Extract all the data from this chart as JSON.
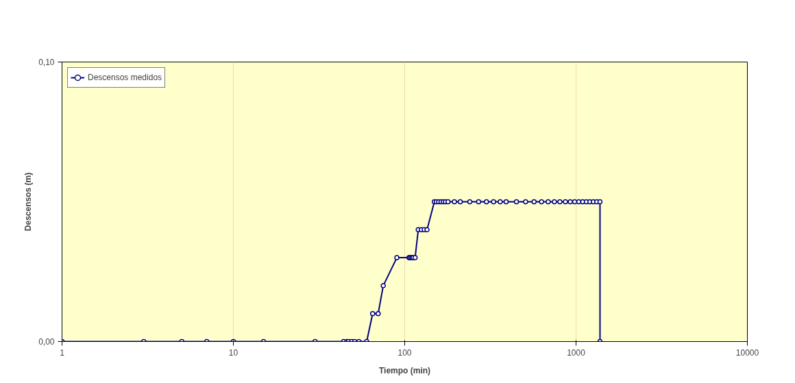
{
  "chart_data": {
    "type": "line",
    "xlabel": "Tiempo (min)",
    "ylabel": "Descensos (m)",
    "x": [
      1,
      3,
      5,
      7,
      10,
      15,
      30,
      44,
      46,
      47,
      49,
      51,
      54,
      60,
      65,
      70,
      75,
      90,
      106,
      107,
      109,
      111,
      112,
      115,
      120,
      125,
      130,
      135,
      149,
      153,
      158,
      163,
      168,
      173,
      179,
      195,
      211,
      240,
      270,
      300,
      330,
      361,
      391,
      449,
      508,
      569,
      629,
      688,
      748,
      805,
      867,
      926,
      982,
      1038,
      1094,
      1149,
      1204,
      1262,
      1321,
      1380,
      1380
    ],
    "series": [
      {
        "name": "Descensos medidos",
        "color": "#000080",
        "values": [
          0,
          0,
          0,
          0,
          0,
          0,
          0,
          0,
          0,
          0,
          0,
          0,
          0,
          0,
          0.01,
          0.01,
          0.02,
          0.03,
          0.03,
          0.03,
          0.03,
          0.03,
          0.03,
          0.03,
          0.04,
          0.04,
          0.04,
          0.04,
          0.05,
          0.05,
          0.05,
          0.05,
          0.05,
          0.05,
          0.05,
          0.05,
          0.05,
          0.05,
          0.05,
          0.05,
          0.05,
          0.05,
          0.05,
          0.05,
          0.05,
          0.05,
          0.05,
          0.05,
          0.05,
          0.05,
          0.05,
          0.05,
          0.05,
          0.05,
          0.05,
          0.05,
          0.05,
          0.05,
          0.05,
          0.05,
          0
        ]
      }
    ],
    "log": "x",
    "xlim": [
      1,
      10000
    ],
    "xticks": [
      1,
      10,
      100,
      1000,
      10000
    ],
    "ylim": [
      0,
      0.1
    ],
    "yticks": [
      {
        "value": 0,
        "label": "0,00"
      },
      {
        "value": 0.1,
        "label": "0,10"
      }
    ],
    "grid": "x",
    "legend": "top left",
    "marker": "circle",
    "line_style": "solid"
  }
}
